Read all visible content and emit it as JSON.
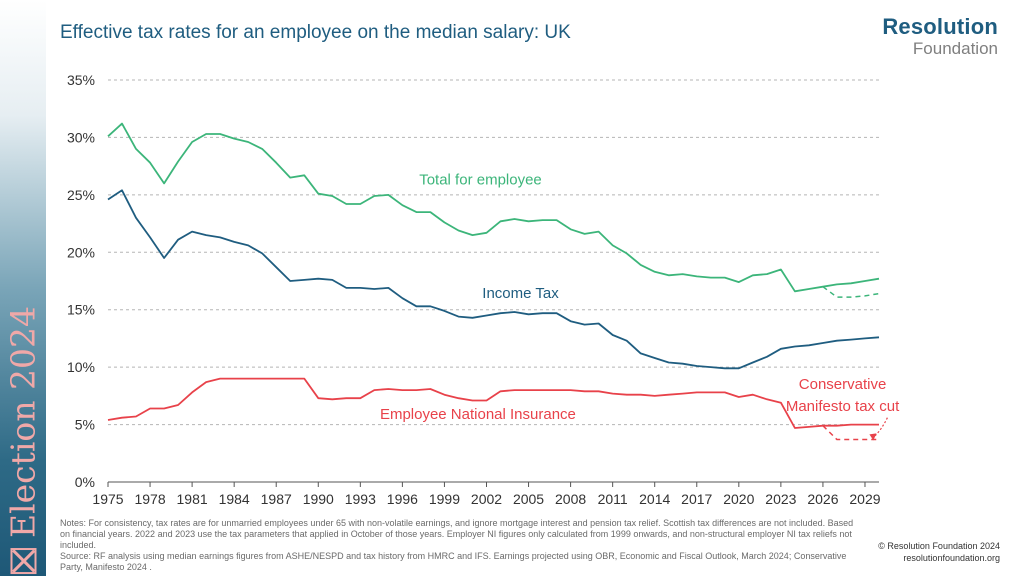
{
  "sidebar": {
    "label": "Election 2024",
    "icon": "ballot-box-x-icon"
  },
  "title": "Effective tax rates for an employee on the median salary: UK",
  "logo": {
    "line1": "Resolution",
    "line2": "Foundation"
  },
  "notes": [
    "Notes: For consistency, tax rates are for unmarried employees under 65 with non-volatile earnings, and ignore mortgage interest and pension tax relief. Scottish tax differences are not included. Based on financial years. 2022 and 2023 use the tax parameters that applied in October of those years. Employer NI figures only calculated from 1999 onwards, and non-structural employer NI tax reliefs not included.",
    "Source: RF analysis using median earnings figures from ASHE/NESPD and tax history from HMRC and IFS. Earnings projected using OBR, Economic and Fiscal Outlook, March 2024; Conservative Party, Manifesto 2024 ."
  ],
  "copyright": {
    "line1": "© Resolution Foundation 2024",
    "line2": "resolutionfoundation.org"
  },
  "chart_data": {
    "type": "line",
    "title": "Effective tax rates for an employee on the median salary: UK",
    "xlabel": "",
    "ylabel": "",
    "xlim": [
      1975,
      2030
    ],
    "ylim": [
      0,
      35
    ],
    "grid": true,
    "xticks": [
      1975,
      1978,
      1981,
      1984,
      1987,
      1990,
      1993,
      1996,
      1999,
      2002,
      2005,
      2008,
      2011,
      2014,
      2017,
      2020,
      2023,
      2026,
      2029
    ],
    "yticks": [
      0,
      5,
      10,
      15,
      20,
      25,
      30,
      35
    ],
    "ytick_labels": [
      "0%",
      "5%",
      "10%",
      "15%",
      "20%",
      "25%",
      "30%",
      "35%"
    ],
    "x": [
      1975,
      1976,
      1977,
      1978,
      1979,
      1980,
      1981,
      1982,
      1983,
      1984,
      1985,
      1986,
      1987,
      1988,
      1989,
      1990,
      1991,
      1992,
      1993,
      1994,
      1995,
      1996,
      1997,
      1998,
      1999,
      2000,
      2001,
      2002,
      2003,
      2004,
      2005,
      2006,
      2007,
      2008,
      2009,
      2010,
      2011,
      2012,
      2013,
      2014,
      2015,
      2016,
      2017,
      2018,
      2019,
      2020,
      2021,
      2022,
      2023,
      2024,
      2025,
      2026,
      2027,
      2028,
      2029,
      2030
    ],
    "series": [
      {
        "name": "Total for employee",
        "color": "#3cb57a",
        "values": [
          30.1,
          31.2,
          29.0,
          27.8,
          26.0,
          27.9,
          29.6,
          30.3,
          30.3,
          29.9,
          29.6,
          29.0,
          27.8,
          26.5,
          26.7,
          25.1,
          24.9,
          24.2,
          24.2,
          24.9,
          25.0,
          24.1,
          23.5,
          23.5,
          22.6,
          21.9,
          21.5,
          21.7,
          22.7,
          22.9,
          22.7,
          22.8,
          22.8,
          22.0,
          21.6,
          21.8,
          20.6,
          19.9,
          18.9,
          18.3,
          18.0,
          18.1,
          17.9,
          17.8,
          17.8,
          17.4,
          18.0,
          18.1,
          18.5,
          16.6,
          16.8,
          17.0,
          17.2,
          17.3,
          17.5,
          17.7
        ]
      },
      {
        "name": "Income Tax",
        "color": "#1f5d80",
        "values": [
          24.6,
          25.4,
          23.0,
          21.3,
          19.5,
          21.1,
          21.8,
          21.5,
          21.3,
          20.9,
          20.6,
          19.9,
          18.7,
          17.5,
          17.6,
          17.7,
          17.6,
          16.9,
          16.9,
          16.8,
          16.9,
          16.0,
          15.3,
          15.3,
          14.9,
          14.4,
          14.3,
          14.5,
          14.7,
          14.8,
          14.6,
          14.7,
          14.7,
          14.0,
          13.7,
          13.8,
          12.8,
          12.3,
          11.2,
          10.8,
          10.4,
          10.3,
          10.1,
          10.0,
          9.9,
          9.9,
          10.4,
          10.9,
          11.6,
          11.8,
          11.9,
          12.1,
          12.3,
          12.4,
          12.5,
          12.6
        ]
      },
      {
        "name": "Employee National Insurance",
        "color": "#e8424a",
        "values": [
          5.4,
          5.6,
          5.7,
          6.4,
          6.4,
          6.7,
          7.8,
          8.7,
          9.0,
          9.0,
          9.0,
          9.0,
          9.0,
          9.0,
          9.0,
          7.3,
          7.2,
          7.3,
          7.3,
          8.0,
          8.1,
          8.0,
          8.0,
          8.1,
          7.6,
          7.3,
          7.1,
          7.1,
          7.9,
          8.0,
          8.0,
          8.0,
          8.0,
          8.0,
          7.9,
          7.9,
          7.7,
          7.6,
          7.6,
          7.5,
          7.6,
          7.7,
          7.8,
          7.8,
          7.8,
          7.4,
          7.6,
          7.2,
          6.9,
          4.7,
          4.8,
          4.9,
          4.9,
          5.0,
          5.0,
          5.0
        ]
      }
    ],
    "projections": [
      {
        "name": "Total for employee",
        "color": "#3cb57a",
        "x": [
          2026,
          2027,
          2028,
          2029,
          2030
        ],
        "values": [
          17.0,
          16.1,
          16.1,
          16.2,
          16.4
        ]
      },
      {
        "name": "Employee National Insurance",
        "color": "#e8424a",
        "x": [
          2026,
          2027,
          2028,
          2029,
          2030
        ],
        "values": [
          4.9,
          3.7,
          3.7,
          3.7,
          3.7
        ]
      }
    ],
    "annotations": [
      {
        "text": "Total for employee",
        "color": "#3cb57a"
      },
      {
        "text": "Income Tax",
        "color": "#1f5d80"
      },
      {
        "text": "Employee National Insurance",
        "color": "#e8424a"
      },
      {
        "text_lines": [
          "Conservative",
          "Manifesto tax cut"
        ],
        "color": "#e8424a"
      }
    ]
  }
}
